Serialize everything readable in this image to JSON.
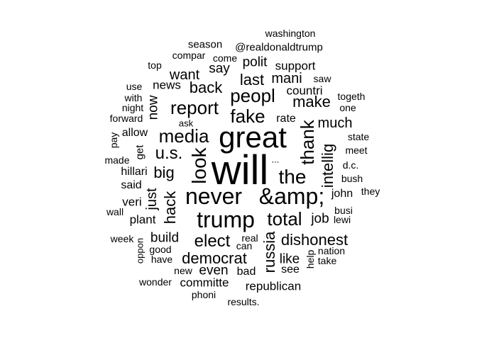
{
  "text_color": "#000000",
  "background": "#ffffff",
  "words": [
    "will",
    "great",
    "never",
    "&amp;",
    "trump",
    "the",
    "thank",
    "look",
    "media",
    "peopl",
    "fake",
    "report",
    "total",
    "elect",
    "russia",
    "u.s.",
    "dishonest",
    "democrat",
    "hack",
    "just",
    "intellig",
    "make",
    "back",
    "big",
    "last",
    "mani",
    "want",
    "say",
    "polit",
    "support",
    "countri",
    "now",
    "much",
    "build",
    "even",
    "like",
    "job",
    "news",
    "rate",
    "see",
    "republican",
    "committe",
    "plant",
    "john",
    "veri",
    "said",
    "hillari",
    "get",
    "allow",
    "bad",
    "real",
    "can",
    "washington",
    "@realdonaldtrump",
    "season",
    "compar",
    "come",
    "top",
    "saw",
    "use",
    "with",
    "night",
    "forward",
    "togeth",
    "one",
    "ask",
    "state",
    "pay",
    "meet",
    "made",
    "...",
    "d.c.",
    "bush",
    "they",
    "wall",
    "busi",
    "lewi",
    "week",
    "oppon",
    "good",
    "have",
    "nation",
    "help",
    "take",
    "new",
    "wonder",
    "phoni",
    "results."
  ]
}
